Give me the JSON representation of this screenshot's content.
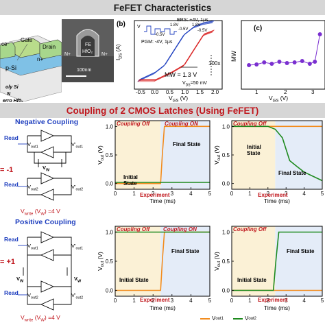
{
  "header": {
    "title": "FeFET Characteristics",
    "coupling_title": "Coupling of 2 CMOS Latches (Using FeFET)"
  },
  "device": {
    "labels": [
      "Gate",
      "ce",
      "Drain",
      "n+",
      "p-Si"
    ],
    "legend": [
      "oly Si",
      "N",
      "erro Hf0₂"
    ],
    "tem": {
      "fe": "FE",
      "hfo2": "HfO₂",
      "nplus_left": "N+",
      "nplus_right": "N+",
      "scale": "100nm"
    }
  },
  "panel_b": {
    "tag": "(b)",
    "ers": "ERS: +4V, 1µs",
    "pgm": "PGM: -4V, 1µs",
    "vgs_tag": "V",
    "pulse_levels": [
      "-0.5V",
      "1.8V",
      "-0.5V",
      "1.8V",
      "-0.5V"
    ],
    "mw": "MW = 1.3 V",
    "ratio": "100x",
    "vds": "V",
    "vds_sub": "DS",
    "vds_value": "=50 mV",
    "ylabel": "I",
    "ylabel_sub": "DS",
    "ylabel_unit": " (A)",
    "xlabel": "V",
    "xlabel_sub": "GS",
    "xlabel_unit": " (V)",
    "xticks": [
      "-0.5",
      "0.0",
      "0.5",
      "1.0",
      "1.5",
      "2.0"
    ]
  },
  "panel_c": {
    "tag": "(c)",
    "ylabel": "MW",
    "xlabel": "V",
    "xlabel_sub": "GS",
    "xlabel_unit": " (V)",
    "xticks": [
      "1",
      "2",
      "3"
    ]
  },
  "circuits": {
    "negative": {
      "title": "Negative Coupling",
      "read": "Read",
      "vout1": "V",
      "vout1_sub": "out1",
      "vout1p": "V'",
      "vout1p_sub": "out1",
      "vout2": "V",
      "vout2_sub": "out2",
      "vout2p": "V'",
      "vout2p_sub": "out2",
      "vw": "V",
      "vw_sub": "W",
      "eq": "= -1"
    },
    "positive": {
      "title": "Positive Coupling",
      "read": "Read",
      "vout1": "V",
      "vout1_sub": "out1",
      "vout1p": "V'",
      "vout1p_sub": "out1",
      "vout2": "V",
      "vout2_sub": "out2",
      "vout2p": "V'",
      "vout2p_sub": "out2",
      "vw": "V",
      "vw_sub": "W",
      "eq": "= +1"
    },
    "vwrite_top": "V",
    "vwrite_top_sub": "write",
    "vwrite_top_rest": " (V",
    "vwrite_top_sub2": "W",
    "vwrite_top_end": ") =4 V",
    "vwrite_bot": "V",
    "vwrite_bot_sub": "write",
    "vwrite_bot_rest": " (V",
    "vwrite_bot_sub2": "W",
    "vwrite_bot_end": ") =4 V"
  },
  "plots": {
    "coupling_off": "Coupling Off",
    "coupling_on": "Coupling ON",
    "initial_state": "Initial\nState",
    "initial_state_inline": "Initial State",
    "final_state": "Final State",
    "experiment": "Experiment",
    "ylabel": "V",
    "ylabel_sub": "out",
    "ylabel_unit": " (V)",
    "xlabel": "Time (ms)",
    "yticks": [
      "0.0",
      "0.5",
      "1.0"
    ],
    "xticks": [
      "0",
      "1",
      "2",
      "3",
      "4",
      "5"
    ]
  },
  "legend": {
    "vout1": "V",
    "vout1_sub": "out1",
    "vout2": "V",
    "vout2_sub": "out2"
  },
  "colors": {
    "vout1": "#f28c1e",
    "vout2": "#1e8a1e",
    "off_band": "#fbf1d6",
    "on_band": "#e4ecf8",
    "accent_red": "#c0171d",
    "mw_purple": "#7a2fd0",
    "blue_curve": "#1f3fbf",
    "red_curve": "#d92020"
  },
  "chart_data": [
    {
      "type": "line",
      "title": "",
      "xlabel": "V_GS (V)",
      "ylabel": "I_DS (A)",
      "xlim": [
        -0.6,
        2.1
      ],
      "log_scale_y": true,
      "series": [
        {
          "values_x": [
            -0.5,
            0.0,
            0.3,
            0.6,
            0.9,
            1.2,
            1.5,
            1.8
          ],
          "values_y": [
            1e-13,
            1e-12,
            1e-11,
            1e-09,
            1e-07,
            1e-06,
            3e-06,
            5e-06
          ]
        },
        {
          "values_x": [
            -0.5,
            0.0,
            0.5,
            0.9,
            1.2,
            1.5,
            1.8
          ],
          "values_y": [
            1e-13,
            1e-13,
            1e-12,
            1e-11,
            1e-09,
            1e-07,
            3e-07
          ]
        }
      ]
    },
    {
      "type": "scatter",
      "title": "",
      "xlabel": "V_GS (V)",
      "ylabel": "MW",
      "x": [
        0.6,
        0.9,
        1.2,
        1.5,
        1.8,
        2.1,
        2.4,
        2.7,
        3.0,
        3.2,
        3.4
      ],
      "y": [
        0.7,
        0.72,
        0.78,
        0.74,
        0.8,
        0.76,
        0.78,
        0.82,
        0.74,
        0.8,
        1.6
      ]
    },
    {
      "type": "line",
      "xlabel": "Time (ms)",
      "ylabel": "V_out (V)",
      "xlim": [
        0,
        5
      ],
      "ylim": [
        -0.1,
        1.1
      ],
      "series": [
        {
          "name": "V_out1",
          "x": [
            0,
            2.4,
            2.5,
            2.6,
            5
          ],
          "y": [
            0.0,
            0.0,
            0.55,
            1.0,
            1.0
          ]
        },
        {
          "name": "V_out2",
          "x": [
            0,
            5
          ],
          "y": [
            0.02,
            0.02
          ]
        }
      ]
    },
    {
      "type": "line",
      "xlabel": "Time (ms)",
      "ylabel": "V_out (V)",
      "xlim": [
        0,
        5
      ],
      "ylim": [
        -0.1,
        1.1
      ],
      "series": [
        {
          "name": "V_out1",
          "x": [
            0,
            5
          ],
          "y": [
            1.0,
            1.0
          ]
        },
        {
          "name": "V_out2",
          "x": [
            0,
            2.0,
            2.4,
            2.8,
            3.2,
            3.6,
            4.0,
            5
          ],
          "y": [
            1.0,
            1.0,
            0.95,
            0.8,
            0.4,
            0.3,
            0.2,
            0.05
          ]
        }
      ]
    },
    {
      "type": "line",
      "xlabel": "Time (ms)",
      "ylabel": "V_out (V)",
      "xlim": [
        0,
        5
      ],
      "ylim": [
        -0.1,
        1.1
      ],
      "series": [
        {
          "name": "V_out1",
          "x": [
            0,
            2.4,
            2.5,
            2.6,
            5
          ],
          "y": [
            0.0,
            0.0,
            0.55,
            1.0,
            1.0
          ]
        },
        {
          "name": "V_out2",
          "x": [
            0,
            5
          ],
          "y": [
            1.0,
            1.0
          ]
        }
      ]
    },
    {
      "type": "line",
      "xlabel": "Time (ms)",
      "ylabel": "V_out (V)",
      "xlim": [
        0,
        5
      ],
      "ylim": [
        -0.1,
        1.1
      ],
      "series": [
        {
          "name": "V_out1",
          "x": [
            0,
            5
          ],
          "y": [
            0.0,
            0.0
          ]
        },
        {
          "name": "V_out2",
          "x": [
            0,
            2.3,
            2.45,
            2.6,
            5
          ],
          "y": [
            0.0,
            0.0,
            0.55,
            1.0,
            1.0
          ]
        }
      ]
    }
  ]
}
